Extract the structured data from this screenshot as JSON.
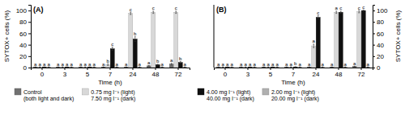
{
  "chart_data": [
    {
      "type": "bar",
      "title": "(A)",
      "xlabel": "Time (h)",
      "ylabel": "SYTOX+ cells (%)",
      "categories": [
        "0",
        "3",
        "5",
        "7",
        "24",
        "48",
        "72"
      ],
      "ylim": [
        0,
        110
      ],
      "yticks": [
        0,
        20,
        40,
        60,
        80,
        100
      ],
      "grid": false,
      "series": [
        {
          "name": "Control\n(both light and dark)",
          "color": "#717171",
          "values": [
            1,
            1,
            1,
            1,
            1,
            3,
            6
          ],
          "errors": [
            0.3,
            0.3,
            0.3,
            0.3,
            0.3,
            0.5,
            1.5
          ],
          "letters": [
            "a",
            "a",
            "a",
            "a",
            "a",
            "a",
            "a"
          ]
        },
        {
          "name": "0.75 mg l⁻¹ (light)\n7.50 mg l⁻¹ (dark)",
          "color": "#d8d8d8",
          "values": [
            1,
            1,
            1,
            5,
            95,
            97,
            97
          ],
          "errors": [
            0.3,
            0.3,
            0.3,
            1.5,
            2,
            2,
            2
          ],
          "letters": [
            "a",
            "a",
            "a",
            "b",
            "c",
            "c",
            "c"
          ]
        },
        {
          "color": "#101010",
          "values": [
            1,
            1,
            1,
            33,
            50,
            5,
            9
          ],
          "errors": [
            0.3,
            0.3,
            0.3,
            3,
            4,
            0.8,
            1.5
          ],
          "letters": [
            "a",
            "a",
            "a",
            "c",
            "b",
            "b",
            "b"
          ]
        },
        {
          "color": "#b0b0b0",
          "values": [
            1,
            1,
            1,
            1,
            1,
            1,
            1
          ],
          "errors": [
            0.3,
            0.3,
            0.3,
            0.3,
            0.3,
            0.3,
            0.3
          ],
          "letters": [
            "a",
            "a",
            "a",
            "a",
            "a",
            "a",
            "a"
          ]
        }
      ]
    },
    {
      "type": "bar",
      "title": "(B)",
      "xlabel": "Time (h)",
      "y2label": "SYTOX+ cells (%)",
      "categories": [
        "0",
        "3",
        "5",
        "7",
        "24",
        "48",
        "72"
      ],
      "y2lim": [
        0,
        110
      ],
      "y2ticks": [
        0,
        20,
        40,
        60,
        80,
        100
      ],
      "grid": false,
      "series": [
        {
          "color": "#717171",
          "axis": "y2",
          "values": [
            1,
            1,
            1,
            1,
            1,
            1,
            2
          ],
          "errors": [
            0.3,
            0.3,
            0.3,
            0.3,
            0.3,
            0.3,
            0.5
          ],
          "letters": [
            "a",
            "a",
            "a",
            "a",
            "a",
            "a",
            "a"
          ]
        },
        {
          "color": "#d8d8d8",
          "axis": "y2",
          "values": [
            1,
            1,
            1,
            1,
            38,
            97,
            98
          ],
          "errors": [
            0.3,
            0.3,
            0.3,
            0.3,
            3,
            2,
            2
          ],
          "letters": [
            "a",
            "a",
            "a",
            "a",
            "a",
            "a",
            "c"
          ]
        },
        {
          "name": "4.00 mg l⁻¹ (light)\n40.00 mg l⁻¹ (dark)",
          "color": "#101010",
          "axis": "y2",
          "values": [
            1,
            1,
            1,
            1,
            88,
            97,
            100
          ],
          "errors": [
            0.3,
            0.3,
            0.3,
            0.5,
            3,
            2,
            1
          ],
          "letters": [
            "a",
            "a",
            "a",
            "b",
            "c",
            "c",
            "c"
          ]
        },
        {
          "name": "2.00 mg l⁻¹ (light)\n20.00 mg l⁻¹ (dark)",
          "color": "#b0b0b0",
          "axis": "y2",
          "values": [
            1,
            1,
            1,
            1,
            1,
            1,
            1
          ],
          "errors": [
            0.3,
            0.3,
            0.3,
            0.3,
            0.3,
            0.3,
            0.3
          ],
          "letters": [
            "a",
            "a",
            "a",
            "a",
            "a",
            "a",
            "a"
          ]
        }
      ]
    }
  ]
}
